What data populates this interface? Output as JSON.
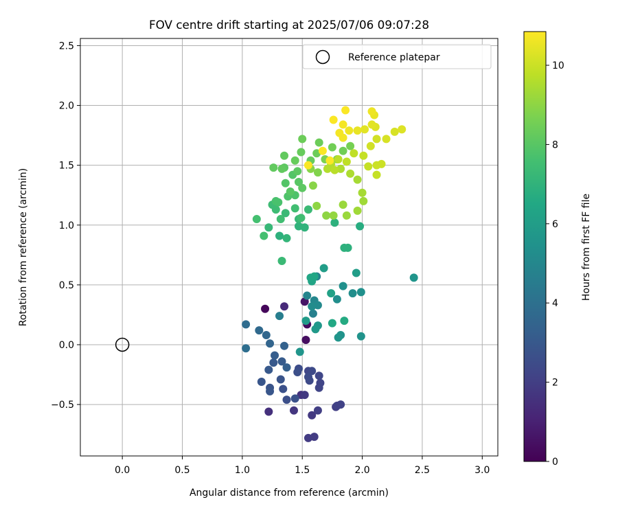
{
  "chart_data": {
    "type": "scatter",
    "title": "FOV centre drift starting at 2025/07/06 09:07:28",
    "xlabel": "Angular distance from reference (arcmin)",
    "ylabel": "Rotation from reference (arcmin)",
    "xlim": [
      -0.35,
      3.13
    ],
    "ylim": [
      -0.93,
      2.56
    ],
    "xticks": [
      0.0,
      0.5,
      1.0,
      1.5,
      2.0,
      2.5,
      3.0
    ],
    "xtick_labels": [
      "0.0",
      "0.5",
      "1.0",
      "1.5",
      "2.0",
      "2.5",
      "3.0"
    ],
    "yticks": [
      -0.5,
      0.0,
      0.5,
      1.0,
      1.5,
      2.0,
      2.5
    ],
    "ytick_labels": [
      "−0.5",
      "0.0",
      "0.5",
      "1.0",
      "1.5",
      "2.0",
      "2.5"
    ],
    "grid": true,
    "legend": {
      "placement": "top-right",
      "entries": [
        "Reference platepar"
      ]
    },
    "reference_point": {
      "x": 0.0,
      "y": 0.0,
      "label": "Reference platepar"
    },
    "colorbar": {
      "label": "Hours from first FF file",
      "range": [
        0,
        10.85
      ],
      "ticks": [
        0,
        2,
        4,
        6,
        8,
        10
      ],
      "tick_labels": [
        "0",
        "2",
        "4",
        "6",
        "8",
        "10"
      ],
      "colormap": "viridis"
    },
    "points": [
      [
        1.19,
        0.3,
        0.2
      ],
      [
        1.54,
        0.17,
        0.3
      ],
      [
        1.53,
        0.04,
        0.4
      ],
      [
        1.52,
        0.36,
        0.6
      ],
      [
        1.35,
        0.32,
        1.3
      ],
      [
        1.22,
        -0.56,
        1.5
      ],
      [
        1.49,
        -0.42,
        1.6
      ],
      [
        1.43,
        -0.55,
        1.7
      ],
      [
        1.52,
        -0.42,
        1.8
      ],
      [
        1.58,
        -0.59,
        1.8
      ],
      [
        1.55,
        -0.78,
        1.9
      ],
      [
        1.6,
        -0.77,
        1.9
      ],
      [
        1.63,
        -0.55,
        2.0
      ],
      [
        1.78,
        -0.52,
        2.0
      ],
      [
        1.79,
        -0.51,
        2.1
      ],
      [
        1.82,
        -0.5,
        2.1
      ],
      [
        1.64,
        -0.36,
        2.2
      ],
      [
        1.65,
        -0.32,
        2.2
      ],
      [
        1.64,
        -0.26,
        2.3
      ],
      [
        1.55,
        -0.22,
        2.3
      ],
      [
        1.56,
        -0.3,
        2.4
      ],
      [
        1.58,
        -0.22,
        2.4
      ],
      [
        1.55,
        -0.27,
        2.5
      ],
      [
        1.47,
        -0.2,
        2.5
      ],
      [
        1.46,
        -0.23,
        2.6
      ],
      [
        1.37,
        -0.46,
        2.6
      ],
      [
        1.44,
        -0.45,
        2.7
      ],
      [
        1.34,
        -0.37,
        2.7
      ],
      [
        1.32,
        -0.29,
        2.8
      ],
      [
        1.23,
        -0.36,
        2.8
      ],
      [
        1.23,
        -0.39,
        2.9
      ],
      [
        1.16,
        -0.31,
        2.9
      ],
      [
        1.22,
        -0.21,
        3.0
      ],
      [
        1.26,
        -0.15,
        3.0
      ],
      [
        1.33,
        -0.14,
        3.1
      ],
      [
        1.27,
        -0.09,
        3.2
      ],
      [
        1.37,
        -0.19,
        3.3
      ],
      [
        1.35,
        -0.01,
        3.4
      ],
      [
        1.23,
        0.01,
        3.5
      ],
      [
        1.2,
        0.08,
        3.6
      ],
      [
        1.14,
        0.12,
        3.7
      ],
      [
        1.03,
        0.17,
        3.8
      ],
      [
        1.03,
        -0.03,
        3.9
      ],
      [
        1.31,
        0.24,
        4.6
      ],
      [
        1.59,
        0.26,
        4.7
      ],
      [
        1.62,
        0.57,
        4.8
      ],
      [
        1.54,
        0.41,
        4.9
      ],
      [
        1.6,
        0.37,
        5.0
      ],
      [
        1.63,
        0.33,
        5.1
      ],
      [
        1.58,
        0.32,
        5.2
      ],
      [
        1.79,
        0.38,
        5.3
      ],
      [
        1.92,
        0.43,
        5.3
      ],
      [
        1.99,
        0.44,
        5.4
      ],
      [
        1.84,
        0.49,
        5.4
      ],
      [
        1.99,
        0.07,
        5.5
      ],
      [
        1.82,
        0.08,
        5.5
      ],
      [
        1.8,
        0.06,
        5.6
      ],
      [
        1.48,
        -0.06,
        5.6
      ],
      [
        1.63,
        0.16,
        5.7
      ],
      [
        1.61,
        0.13,
        5.8
      ],
      [
        1.53,
        0.2,
        5.9
      ],
      [
        1.68,
        0.64,
        6.0
      ],
      [
        1.95,
        0.6,
        6.0
      ],
      [
        2.43,
        0.56,
        5.6
      ],
      [
        1.74,
        0.43,
        6.2
      ],
      [
        1.58,
        0.53,
        6.3
      ],
      [
        1.57,
        0.56,
        6.4
      ],
      [
        1.6,
        0.57,
        6.4
      ],
      [
        1.75,
        0.18,
        6.5
      ],
      [
        1.85,
        0.2,
        6.6
      ],
      [
        1.98,
        0.99,
        6.7
      ],
      [
        1.85,
        0.81,
        6.9
      ],
      [
        1.88,
        0.81,
        6.9
      ],
      [
        1.77,
        1.02,
        6.9
      ],
      [
        1.31,
        0.91,
        6.9
      ],
      [
        1.33,
        0.7,
        7.3
      ],
      [
        1.52,
        0.98,
        7.0
      ],
      [
        1.47,
        0.99,
        7.0
      ],
      [
        1.37,
        0.89,
        7.1
      ],
      [
        1.22,
        0.98,
        7.2
      ],
      [
        1.47,
        1.05,
        7.2
      ],
      [
        1.55,
        1.13,
        7.3
      ],
      [
        1.36,
        1.1,
        7.3
      ],
      [
        1.28,
        1.13,
        7.4
      ],
      [
        1.25,
        1.17,
        7.4
      ],
      [
        1.44,
        1.14,
        7.5
      ],
      [
        1.49,
        1.06,
        7.5
      ],
      [
        1.32,
        1.05,
        7.5
      ],
      [
        1.18,
        0.91,
        7.6
      ],
      [
        1.12,
        1.05,
        7.6
      ],
      [
        1.28,
        1.2,
        7.7
      ],
      [
        1.3,
        1.19,
        7.7
      ],
      [
        1.38,
        1.24,
        7.8
      ],
      [
        1.44,
        1.25,
        7.8
      ],
      [
        1.42,
        1.42,
        7.9
      ],
      [
        1.36,
        1.35,
        7.9
      ],
      [
        1.4,
        1.28,
        8.0
      ],
      [
        1.47,
        1.36,
        8.0
      ],
      [
        1.5,
        1.31,
        8.1
      ],
      [
        1.46,
        1.45,
        8.1
      ],
      [
        1.35,
        1.48,
        8.1
      ],
      [
        1.33,
        1.47,
        8.2
      ],
      [
        1.26,
        1.48,
        8.2
      ],
      [
        1.35,
        1.58,
        8.2
      ],
      [
        1.44,
        1.54,
        8.3
      ],
      [
        1.49,
        1.61,
        8.3
      ],
      [
        1.57,
        1.54,
        8.3
      ],
      [
        1.62,
        1.6,
        8.4
      ],
      [
        1.5,
        1.72,
        8.4
      ],
      [
        1.64,
        1.69,
        8.4
      ],
      [
        1.75,
        1.65,
        8.5
      ],
      [
        1.84,
        1.62,
        8.5
      ],
      [
        1.9,
        1.66,
        8.6
      ],
      [
        1.79,
        1.55,
        8.6
      ],
      [
        1.69,
        1.55,
        8.7
      ],
      [
        1.63,
        1.44,
        8.8
      ],
      [
        1.57,
        1.47,
        8.9
      ],
      [
        1.59,
        1.33,
        8.9
      ],
      [
        1.62,
        1.16,
        9.0
      ],
      [
        1.7,
        1.08,
        9.0
      ],
      [
        1.76,
        1.08,
        9.1
      ],
      [
        1.87,
        1.08,
        9.2
      ],
      [
        1.84,
        1.17,
        9.2
      ],
      [
        1.96,
        1.12,
        9.3
      ],
      [
        2.01,
        1.2,
        9.3
      ],
      [
        2.0,
        1.27,
        9.4
      ],
      [
        1.96,
        1.38,
        9.4
      ],
      [
        1.9,
        1.43,
        9.5
      ],
      [
        1.82,
        1.47,
        9.5
      ],
      [
        1.74,
        1.51,
        9.6
      ],
      [
        1.71,
        1.47,
        9.6
      ],
      [
        1.77,
        1.46,
        9.7
      ],
      [
        1.8,
        1.55,
        9.7
      ],
      [
        1.87,
        1.53,
        9.8
      ],
      [
        1.93,
        1.6,
        9.8
      ],
      [
        2.01,
        1.58,
        9.9
      ],
      [
        2.05,
        1.49,
        9.9
      ],
      [
        2.12,
        1.42,
        9.9
      ],
      [
        2.16,
        1.51,
        10.0
      ],
      [
        2.12,
        1.5,
        10.0
      ],
      [
        2.07,
        1.66,
        10.1
      ],
      [
        2.12,
        1.72,
        10.1
      ],
      [
        2.2,
        1.72,
        10.2
      ],
      [
        2.27,
        1.78,
        10.2
      ],
      [
        2.33,
        1.8,
        10.3
      ],
      [
        2.11,
        1.82,
        10.3
      ],
      [
        2.08,
        1.84,
        10.4
      ],
      [
        2.02,
        1.8,
        10.4
      ],
      [
        1.96,
        1.79,
        10.5
      ],
      [
        2.1,
        1.92,
        10.5
      ],
      [
        2.08,
        1.95,
        10.6
      ],
      [
        1.89,
        1.79,
        10.6
      ],
      [
        1.81,
        1.77,
        10.7
      ],
      [
        1.84,
        1.73,
        10.7
      ],
      [
        1.84,
        1.84,
        10.7
      ],
      [
        1.76,
        1.88,
        10.8
      ],
      [
        1.86,
        1.96,
        10.8
      ],
      [
        1.67,
        1.62,
        10.8
      ],
      [
        1.73,
        1.54,
        10.8
      ],
      [
        1.55,
        1.5,
        10.8
      ]
    ]
  }
}
